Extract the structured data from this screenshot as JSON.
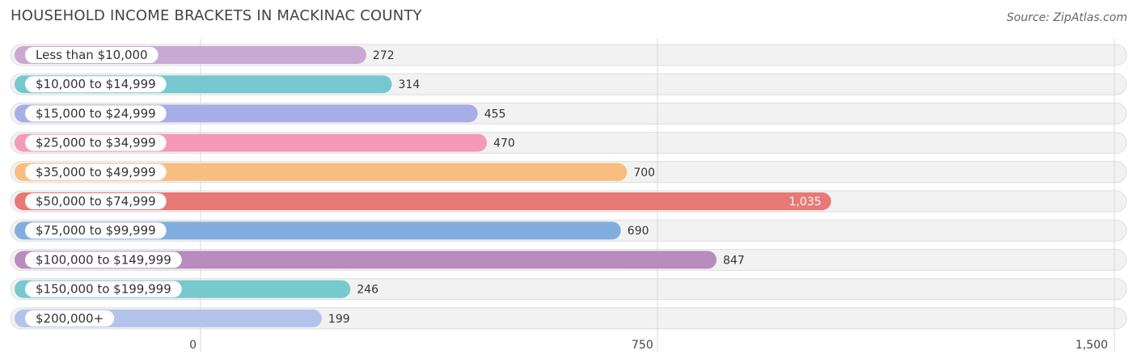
{
  "header": {
    "title": "HOUSEHOLD INCOME BRACKETS IN MACKINAC COUNTY",
    "source": "Source: ZipAtlas.com"
  },
  "chart_data": {
    "type": "bar",
    "orientation": "horizontal",
    "title": "HOUSEHOLD INCOME BRACKETS IN MACKINAC COUNTY",
    "xlabel": "",
    "ylabel": "",
    "xlim": [
      0,
      1500
    ],
    "ticks": [
      0,
      750,
      1500
    ],
    "tick_labels": [
      "0",
      "750",
      "1,500"
    ],
    "grid": true,
    "categories": [
      "Less than $10,000",
      "$10,000 to $14,999",
      "$15,000 to $24,999",
      "$25,000 to $34,999",
      "$35,000 to $49,999",
      "$50,000 to $74,999",
      "$75,000 to $99,999",
      "$100,000 to $149,999",
      "$150,000 to $199,999",
      "$200,000+"
    ],
    "values": [
      272,
      314,
      455,
      470,
      700,
      1035,
      690,
      847,
      246,
      199
    ],
    "value_labels": [
      "272",
      "314",
      "455",
      "470",
      "700",
      "1,035",
      "690",
      "847",
      "246",
      "199"
    ],
    "colors": [
      "#c9a9d2",
      "#77c8ce",
      "#a8aee6",
      "#f599b8",
      "#f9bd80",
      "#e87976",
      "#82aedf",
      "#b98bbf",
      "#76cace",
      "#b4c3ec"
    ]
  }
}
